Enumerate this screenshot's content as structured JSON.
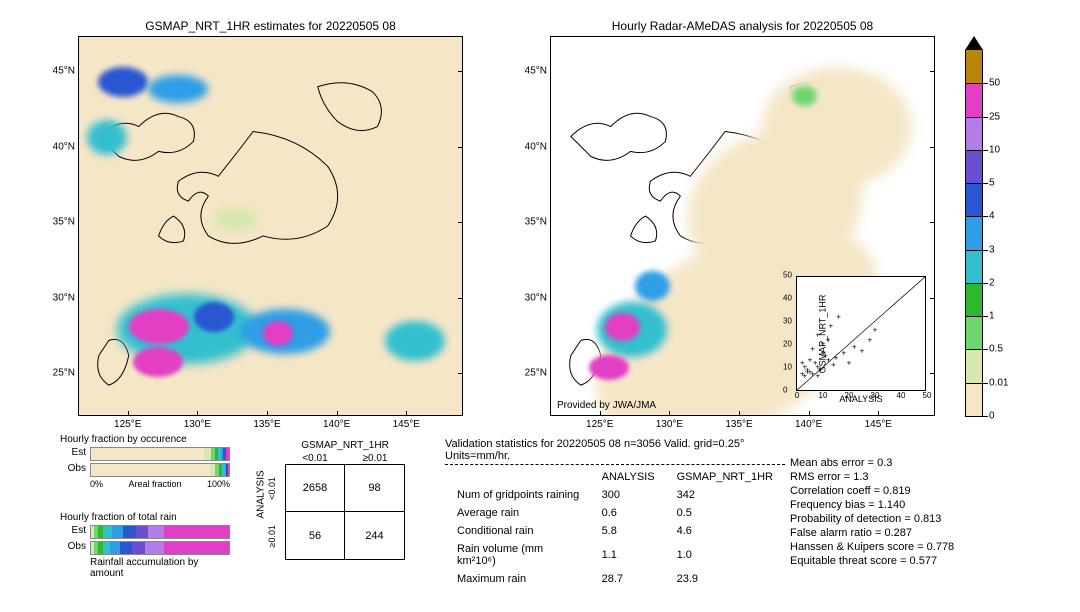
{
  "left_map": {
    "title": "GSMAP_NRT_1HR estimates for 20220505 08",
    "x_ticks": [
      "125°E",
      "130°E",
      "135°E",
      "140°E",
      "145°E"
    ],
    "y_ticks": [
      "45°N",
      "40°N",
      "35°N",
      "30°N",
      "25°N"
    ],
    "xlim": [
      120,
      150
    ],
    "ylim": [
      20,
      48
    ],
    "bg_color": "#f5e6c8"
  },
  "right_map": {
    "title": "Hourly Radar-AMeDAS analysis for 20220505 08",
    "x_ticks": [
      "125°E",
      "130°E",
      "135°E",
      "140°E",
      "145°E"
    ],
    "y_ticks": [
      "45°N",
      "40°N",
      "35°N",
      "30°N",
      "25°N"
    ],
    "xlim": [
      120,
      150
    ],
    "ylim": [
      20,
      48
    ],
    "bg_color": "#ffffff",
    "attribution": "Provided by JWA/JMA"
  },
  "colorbar": {
    "levels": [
      0,
      0.01,
      0.5,
      1,
      2,
      3,
      4,
      5,
      10,
      25,
      50
    ],
    "colors": [
      "#f5e6c8",
      "#d9e8b0",
      "#6fd66f",
      "#2eb82e",
      "#34bfcf",
      "#2e9ee6",
      "#2956d1",
      "#6a4fd1",
      "#b27de6",
      "#e23fc4",
      "#b8860b"
    ],
    "top_triangle_color": "#000000"
  },
  "scatter_inset": {
    "xlabel": "ANALYSIS",
    "ylabel": "GSMAP_NRT_1HR",
    "xlim": [
      0,
      50
    ],
    "ylim": [
      0,
      50
    ],
    "xticks": [
      0,
      10,
      20,
      30,
      40,
      50
    ],
    "yticks": [
      0,
      10,
      20,
      30,
      40,
      50
    ]
  },
  "hourly_fraction_occurrence": {
    "title": "Hourly fraction by occurence",
    "rows": [
      "Est",
      "Obs"
    ],
    "axis_left": "0%",
    "axis_label": "Areal fraction",
    "axis_right": "100%",
    "est_segs": [
      [
        "#f5e6c8",
        82
      ],
      [
        "#d9e8b0",
        5
      ],
      [
        "#6fd66f",
        3
      ],
      [
        "#2eb82e",
        2
      ],
      [
        "#34bfcf",
        2
      ],
      [
        "#2e9ee6",
        2
      ],
      [
        "#2956d1",
        2
      ],
      [
        "#e23fc4",
        2
      ]
    ],
    "obs_segs": [
      [
        "#f5e6c8",
        86
      ],
      [
        "#d9e8b0",
        4
      ],
      [
        "#6fd66f",
        3
      ],
      [
        "#2eb82e",
        2
      ],
      [
        "#34bfcf",
        2
      ],
      [
        "#2e9ee6",
        1
      ],
      [
        "#2956d1",
        1
      ],
      [
        "#e23fc4",
        1
      ]
    ]
  },
  "hourly_fraction_total": {
    "title": "Hourly fraction of total rain",
    "rows": [
      "Est",
      "Obs"
    ],
    "caption": "Rainfall accumulation by amount",
    "est_segs": [
      [
        "#d9e8b0",
        2
      ],
      [
        "#6fd66f",
        3
      ],
      [
        "#2eb82e",
        4
      ],
      [
        "#34bfcf",
        6
      ],
      [
        "#2e9ee6",
        8
      ],
      [
        "#2956d1",
        10
      ],
      [
        "#6a4fd1",
        8
      ],
      [
        "#b27de6",
        12
      ],
      [
        "#e23fc4",
        47
      ]
    ],
    "obs_segs": [
      [
        "#d9e8b0",
        2
      ],
      [
        "#6fd66f",
        3
      ],
      [
        "#2eb82e",
        4
      ],
      [
        "#34bfcf",
        5
      ],
      [
        "#2e9ee6",
        7
      ],
      [
        "#2956d1",
        9
      ],
      [
        "#6a4fd1",
        9
      ],
      [
        "#b27de6",
        14
      ],
      [
        "#e23fc4",
        47
      ]
    ]
  },
  "contingency": {
    "col_header": "GSMAP_NRT_1HR",
    "row_header": "ANALYSIS",
    "col_labels": [
      "<0.01",
      "≥0.01"
    ],
    "row_labels": [
      "<0.01",
      "≥0.01"
    ],
    "cells": [
      [
        "2658",
        "98"
      ],
      [
        "56",
        "244"
      ]
    ]
  },
  "validation": {
    "title": "Validation statistics for 20220505 08  n=3056 Valid. grid=0.25°  Units=mm/hr.",
    "col_headers": [
      "ANALYSIS",
      "GSMAP_NRT_1HR"
    ],
    "rows": [
      [
        "Num of gridpoints raining",
        "300",
        "342"
      ],
      [
        "Average rain",
        "0.6",
        "0.5"
      ],
      [
        "Conditional rain",
        "5.8",
        "4.6"
      ],
      [
        "Rain volume (mm km²10⁶)",
        "1.1",
        "1.0"
      ],
      [
        "Maximum rain",
        "28.7",
        "23.9"
      ]
    ]
  },
  "scores": [
    "Mean abs error =    0.3",
    "RMS error =    1.3",
    "Correlation coeff =  0.819",
    "Frequency bias =  1.140",
    "Probability of detection =  0.813",
    "False alarm ratio =  0.287",
    "Hanssen & Kuipers score =  0.778",
    "Equitable threat score =  0.577"
  ]
}
